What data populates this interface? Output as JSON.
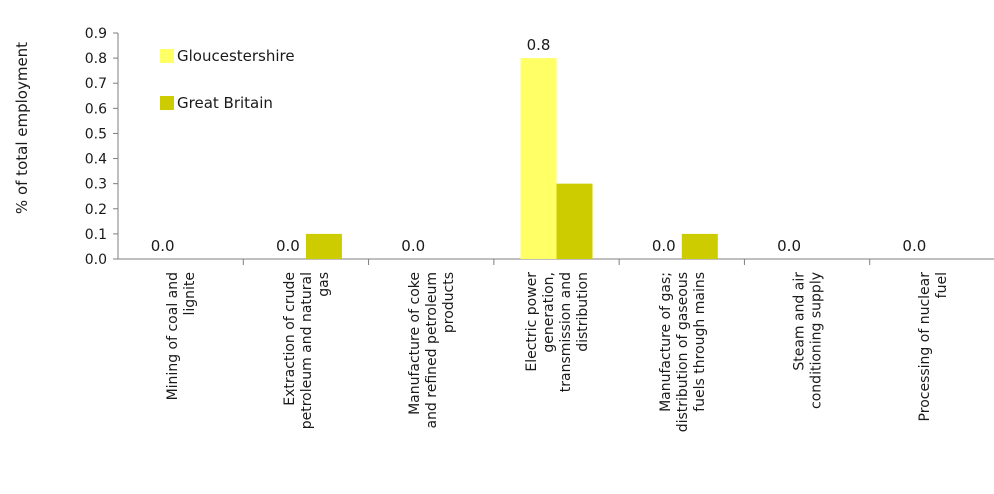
{
  "chart_data": {
    "type": "bar",
    "title": "",
    "xlabel": "",
    "ylabel": "% of total employment",
    "ylim": [
      0,
      0.9
    ],
    "yticks": [
      "0.0",
      "0.1",
      "0.2",
      "0.3",
      "0.4",
      "0.5",
      "0.6",
      "0.7",
      "0.8",
      "0.9"
    ],
    "grid": false,
    "legend_position": "top-left",
    "categories": [
      [
        "Mining of coal and",
        "lignite"
      ],
      [
        "Extraction of crude",
        "petroleum and natural",
        "gas"
      ],
      [
        "Manufacture of coke",
        "and refined petroleum",
        "products"
      ],
      [
        "Electric power",
        "generation,",
        "transmission and",
        "distribution"
      ],
      [
        "Manufacture of gas;",
        "distribution of gaseous",
        "fuels through mains"
      ],
      [
        "Steam and air",
        "conditioning supply"
      ],
      [
        "Processing of nuclear",
        "fuel"
      ]
    ],
    "series": [
      {
        "name": "Gloucestershire",
        "color": "#ffff66",
        "values": [
          0.0,
          0.0,
          0.0,
          0.8,
          0.0,
          0.0,
          0.0
        ],
        "data_labels": [
          "0.0",
          "0.0",
          "0.0",
          "0.8",
          "0.0",
          "0.0",
          "0.0"
        ]
      },
      {
        "name": "Great Britain",
        "color": "#cccc00",
        "values": [
          0.0,
          0.1,
          0.0,
          0.3,
          0.1,
          0.0,
          0.0
        ]
      }
    ]
  }
}
